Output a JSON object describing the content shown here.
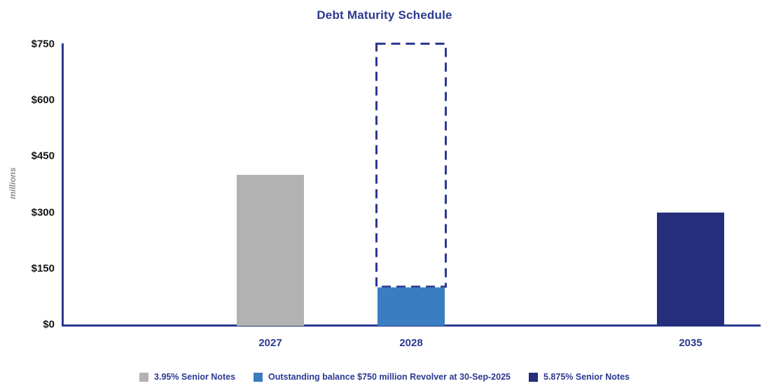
{
  "title": "Debt Maturity Schedule",
  "colors": {
    "axis": "#2B3990",
    "title_text": "#2B3990",
    "tick_text": "#141414",
    "units_text": "#8C8C8C",
    "gray_bar": "#B2B2B2",
    "blue_bar": "#3A7EC1",
    "navy_bar": "#242E7C",
    "dashed_outline": "#2B3990"
  },
  "chart_data": {
    "type": "bar",
    "title": "Debt Maturity Schedule",
    "xlabel": "",
    "ylabel": "millions",
    "ylim": [
      0,
      750
    ],
    "yticks": [
      0,
      150,
      300,
      450,
      600,
      750
    ],
    "ytick_labels": [
      "$0",
      "$150",
      "$300",
      "$450",
      "$600",
      "$750"
    ],
    "categories": [
      "2027",
      "2028",
      "2035"
    ],
    "grid": false,
    "legend_position": "bottom",
    "bars": [
      {
        "category": "2027",
        "value": 400,
        "series": "3.95% Senior Notes",
        "color": "#B2B2B2"
      },
      {
        "category": "2028",
        "value": 100,
        "series": "Outstanding balance $750 million Revolver at 30-Sep-2025",
        "color": "#3A7EC1",
        "capacity": 750,
        "capacity_style": "dashed"
      },
      {
        "category": "2035",
        "value": 300,
        "series": "5.875% Senior Notes",
        "color": "#242E7C"
      }
    ],
    "legend": [
      {
        "label": "3.95% Senior Notes",
        "color": "#B2B2B2"
      },
      {
        "label": "Outstanding balance $750 million Revolver at 30-Sep-2025",
        "color": "#3A7EC1"
      },
      {
        "label": "5.875% Senior Notes",
        "color": "#242E7C"
      }
    ]
  }
}
